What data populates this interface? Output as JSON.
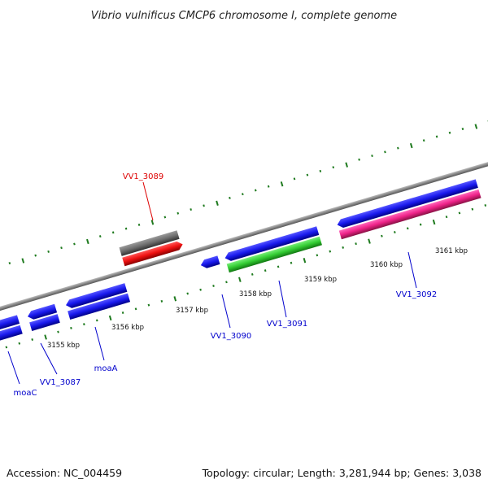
{
  "title": "Vibrio vulnificus CMCP6 chromosome I, complete genome",
  "footer": {
    "accession": "Accession: NC_004459",
    "topology": "Topology: circular; Length: 3,281,944 bp; Genes: 3,038"
  },
  "scale": {
    "ticks": [
      "3155 kbp",
      "3156 kbp",
      "3157 kbp",
      "3158 kbp",
      "3159 kbp",
      "3160 kbp",
      "3161 kbp"
    ]
  },
  "genes": [
    {
      "label": "moaC",
      "color": "#0000cc"
    },
    {
      "label": "VV1_3087",
      "color": "#0000cc"
    },
    {
      "label": "moaA",
      "color": "#0000cc"
    },
    {
      "label": "VV1_3089",
      "color": "#dd0000"
    },
    {
      "label": "VV1_3090",
      "color": "#0000cc"
    },
    {
      "label": "VV1_3091",
      "color": "#0000cc"
    },
    {
      "label": "VV1_3092",
      "color": "#0000cc"
    }
  ],
  "colors": {
    "backbone": "#888888",
    "tick": "#1e7a1e",
    "cds_blue": "#1a1aee",
    "rna_red": "#ee1111",
    "pseudo_gray": "#6e6e6e",
    "green": "#33cc33",
    "magenta": "#ee2288"
  }
}
